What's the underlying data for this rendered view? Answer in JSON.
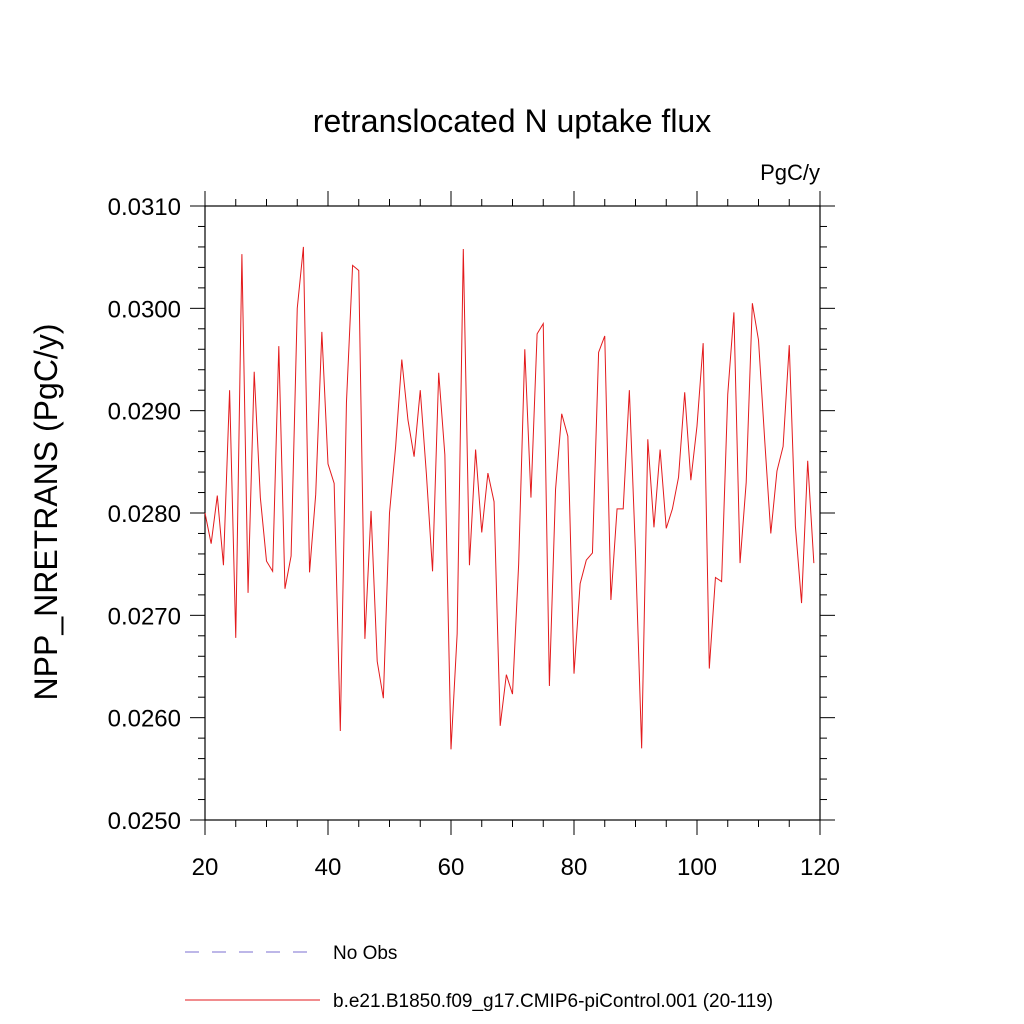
{
  "chart_data": {
    "type": "line",
    "title": "retranslocated N uptake flux",
    "units": "PgC/y",
    "ylabel": "NPP_NRETRANS  (PgC/y)",
    "xlabel": "",
    "xlim": [
      20,
      120
    ],
    "ylim": [
      0.025,
      0.031
    ],
    "x_ticks": [
      20,
      40,
      60,
      80,
      100,
      120
    ],
    "x_tick_labels": [
      "20",
      "40",
      "60",
      "80",
      "100",
      "120"
    ],
    "y_ticks": [
      0.025,
      0.026,
      0.027,
      0.028,
      0.029,
      0.03,
      0.031
    ],
    "y_tick_labels": [
      "0.0250",
      "0.0260",
      "0.0270",
      "0.0280",
      "0.0290",
      "0.0300",
      "0.0310"
    ],
    "grid": false,
    "legend_position": "bottom",
    "legend": [
      {
        "label": "No Obs",
        "color": "#7b6fd1",
        "dash": "dashed"
      },
      {
        "label": "b.e21.B1850.f09_g17.CMIP6-piControl.001 (20-119)",
        "color": "#e31a1c",
        "dash": "solid"
      }
    ],
    "series": [
      {
        "name": "b.e21.B1850.f09_g17.CMIP6-piControl.001 (20-119)",
        "color": "#e31a1c",
        "x": [
          20,
          21,
          22,
          23,
          24,
          25,
          26,
          27,
          28,
          29,
          30,
          31,
          32,
          33,
          34,
          35,
          36,
          37,
          38,
          39,
          40,
          41,
          42,
          43,
          44,
          45,
          46,
          47,
          48,
          49,
          50,
          51,
          52,
          53,
          54,
          55,
          56,
          57,
          58,
          59,
          60,
          61,
          62,
          63,
          64,
          65,
          66,
          67,
          68,
          69,
          70,
          71,
          72,
          73,
          74,
          75,
          76,
          77,
          78,
          79,
          80,
          81,
          82,
          83,
          84,
          85,
          86,
          87,
          88,
          89,
          90,
          91,
          92,
          93,
          94,
          95,
          96,
          97,
          98,
          99,
          100,
          101,
          102,
          103,
          104,
          105,
          106,
          107,
          108,
          109,
          110,
          111,
          112,
          113,
          114,
          115,
          116,
          117,
          118,
          119
        ],
        "values": [
          0.028,
          0.0277,
          0.02817,
          0.02749,
          0.0292,
          0.02678,
          0.03053,
          0.02722,
          0.02938,
          0.02815,
          0.02753,
          0.02743,
          0.02963,
          0.02726,
          0.02758,
          0.03,
          0.0306,
          0.02742,
          0.02818,
          0.02977,
          0.02848,
          0.02829,
          0.02587,
          0.02908,
          0.03042,
          0.03037,
          0.02677,
          0.02802,
          0.02655,
          0.02619,
          0.028,
          0.02865,
          0.0295,
          0.02891,
          0.02855,
          0.0292,
          0.02838,
          0.02743,
          0.02937,
          0.02857,
          0.02569,
          0.02682,
          0.03058,
          0.02749,
          0.02862,
          0.02781,
          0.02839,
          0.02811,
          0.02592,
          0.02642,
          0.02623,
          0.0275,
          0.0296,
          0.02815,
          0.02975,
          0.02985,
          0.02631,
          0.02823,
          0.02897,
          0.02875,
          0.02643,
          0.02731,
          0.02754,
          0.02761,
          0.02957,
          0.02973,
          0.02715,
          0.02804,
          0.02804,
          0.0292,
          0.02761,
          0.0257,
          0.02872,
          0.02786,
          0.02862,
          0.02785,
          0.02804,
          0.02835,
          0.02918,
          0.02832,
          0.02885,
          0.02966,
          0.02648,
          0.02737,
          0.02733,
          0.02916,
          0.02996,
          0.02751,
          0.0283,
          0.03005,
          0.02969,
          0.02872,
          0.0278,
          0.02841,
          0.02865,
          0.02964,
          0.02787,
          0.02712,
          0.02851,
          0.02751
        ]
      }
    ]
  }
}
